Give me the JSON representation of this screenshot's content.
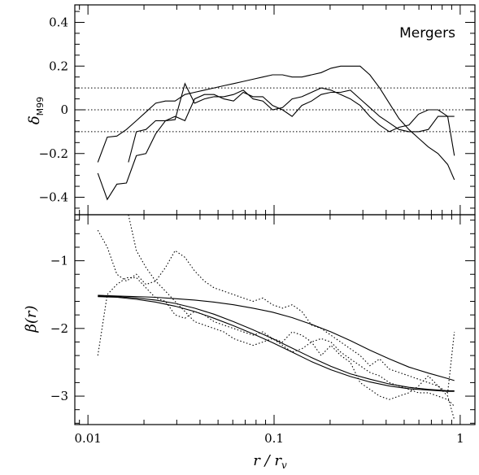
{
  "chart_data": [
    {
      "type": "line",
      "panel": "top",
      "annotation": "Mergers",
      "ylabel_main": "δ",
      "ylabel_sub": "M99",
      "xscale": "log",
      "xlim": [
        0.0085,
        1.2
      ],
      "ylim": [
        -0.48,
        0.48
      ],
      "yticks": [
        -0.4,
        -0.2,
        0,
        0.2,
        0.4
      ],
      "ytick_labels": [
        "−0.4",
        "−0.2",
        "0",
        "0.2",
        "0.4"
      ],
      "reference_lines": [
        0.1,
        0,
        -0.1
      ],
      "series": [
        {
          "style": "solid",
          "x": [
            0.0113,
            0.0127,
            0.0143,
            0.0161,
            0.0182,
            0.0205,
            0.0231,
            0.0261,
            0.0294,
            0.0332,
            0.0374,
            0.0422,
            0.0476,
            0.0537,
            0.0606,
            0.0683,
            0.0771,
            0.087,
            0.0981,
            0.111,
            0.125,
            0.141,
            0.159,
            0.179,
            0.202,
            0.228,
            0.257,
            0.29,
            0.327,
            0.369,
            0.416,
            0.469,
            0.53,
            0.597,
            0.674,
            0.76,
            0.857,
            0.93
          ],
          "y": [
            -0.24,
            -0.125,
            -0.12,
            -0.09,
            -0.05,
            -0.01,
            0.03,
            0.04,
            0.04,
            0.07,
            0.08,
            0.09,
            0.1,
            0.11,
            0.12,
            0.13,
            0.14,
            0.15,
            0.16,
            0.16,
            0.15,
            0.15,
            0.16,
            0.17,
            0.19,
            0.2,
            0.2,
            0.2,
            0.16,
            0.1,
            0.03,
            -0.04,
            -0.09,
            -0.13,
            -0.17,
            -0.2,
            -0.25,
            -0.32
          ]
        },
        {
          "style": "solid",
          "x": [
            0.0113,
            0.0127,
            0.0143,
            0.0161,
            0.0182,
            0.0205,
            0.0231,
            0.0261,
            0.0294,
            0.0332,
            0.0374,
            0.0422,
            0.0476,
            0.0537,
            0.0606,
            0.0683,
            0.0771,
            0.087,
            0.0981,
            0.111,
            0.125,
            0.141,
            0.159,
            0.179,
            0.202,
            0.228,
            0.257,
            0.29,
            0.327,
            0.369,
            0.416,
            0.469,
            0.53,
            0.597,
            0.674,
            0.76,
            0.857,
            0.93
          ],
          "y": [
            -0.29,
            -0.41,
            -0.34,
            -0.335,
            -0.21,
            -0.2,
            -0.11,
            -0.05,
            -0.03,
            -0.05,
            0.05,
            0.07,
            0.07,
            0.05,
            0.04,
            0.08,
            0.06,
            0.06,
            0.02,
            0.0,
            -0.03,
            0.02,
            0.04,
            0.07,
            0.08,
            0.08,
            0.09,
            0.05,
            0.01,
            -0.03,
            -0.06,
            -0.09,
            -0.1,
            -0.1,
            -0.09,
            -0.03,
            -0.03,
            -0.03
          ]
        },
        {
          "style": "solid",
          "x": [
            0.0165,
            0.0182,
            0.0205,
            0.0231,
            0.0261,
            0.0294,
            0.0332,
            0.0374,
            0.0422,
            0.0476,
            0.0537,
            0.0606,
            0.0683,
            0.0771,
            0.087,
            0.0981,
            0.111,
            0.125,
            0.141,
            0.159,
            0.179,
            0.202,
            0.228,
            0.257,
            0.29,
            0.327,
            0.369,
            0.416,
            0.469,
            0.53,
            0.597,
            0.674,
            0.76,
            0.857,
            0.93
          ],
          "y": [
            -0.24,
            -0.1,
            -0.09,
            -0.05,
            -0.05,
            -0.045,
            0.12,
            0.03,
            0.05,
            0.06,
            0.06,
            0.07,
            0.09,
            0.05,
            0.04,
            0.0,
            0.01,
            0.05,
            0.06,
            0.08,
            0.1,
            0.09,
            0.07,
            0.05,
            0.02,
            -0.03,
            -0.07,
            -0.1,
            -0.08,
            -0.07,
            -0.02,
            0.0,
            0.0,
            -0.03,
            -0.21
          ]
        }
      ]
    },
    {
      "type": "line",
      "panel": "bottom",
      "ylabel": "β(r)",
      "xlabel_main": "r / r",
      "xlabel_sub": "v",
      "xscale": "log",
      "xlim": [
        0.0085,
        1.2
      ],
      "ylim": [
        -3.42,
        -0.32
      ],
      "xticks": [
        0.01,
        0.1,
        1
      ],
      "xtick_labels": [
        "0.01",
        "0.1",
        "1"
      ],
      "yticks": [
        -1,
        -2,
        -3
      ],
      "ytick_labels": [
        "−1",
        "−2",
        "−3"
      ],
      "series": [
        {
          "style": "solid",
          "x": [
            0.0113,
            0.0143,
            0.0182,
            0.0231,
            0.0294,
            0.0374,
            0.0476,
            0.0606,
            0.0771,
            0.0981,
            0.125,
            0.159,
            0.202,
            0.257,
            0.327,
            0.416,
            0.53,
            0.674,
            0.857,
            0.93
          ],
          "y": [
            -1.51,
            -1.52,
            -1.53,
            -1.54,
            -1.56,
            -1.58,
            -1.61,
            -1.65,
            -1.7,
            -1.76,
            -1.84,
            -1.94,
            -2.05,
            -2.18,
            -2.32,
            -2.45,
            -2.57,
            -2.66,
            -2.74,
            -2.77
          ]
        },
        {
          "style": "solid",
          "x": [
            0.0113,
            0.0143,
            0.0182,
            0.0231,
            0.0294,
            0.0374,
            0.0476,
            0.0606,
            0.0771,
            0.0981,
            0.125,
            0.159,
            0.202,
            0.257,
            0.327,
            0.416,
            0.53,
            0.674,
            0.857,
            0.93
          ],
          "y": [
            -1.52,
            -1.53,
            -1.55,
            -1.58,
            -1.63,
            -1.7,
            -1.79,
            -1.9,
            -2.02,
            -2.15,
            -2.29,
            -2.43,
            -2.56,
            -2.67,
            -2.75,
            -2.82,
            -2.87,
            -2.9,
            -2.92,
            -2.92
          ]
        },
        {
          "style": "solid",
          "x": [
            0.0113,
            0.0143,
            0.0182,
            0.0231,
            0.0294,
            0.0374,
            0.0476,
            0.0606,
            0.0771,
            0.0981,
            0.125,
            0.159,
            0.202,
            0.257,
            0.327,
            0.416,
            0.53,
            0.674,
            0.857,
            0.93
          ],
          "y": [
            -1.53,
            -1.54,
            -1.57,
            -1.61,
            -1.67,
            -1.75,
            -1.85,
            -1.96,
            -2.08,
            -2.21,
            -2.35,
            -2.49,
            -2.61,
            -2.71,
            -2.79,
            -2.85,
            -2.89,
            -2.91,
            -2.93,
            -2.93
          ]
        },
        {
          "style": "dotted",
          "x": [
            0.0113,
            0.0127,
            0.0143,
            0.0161,
            0.0182,
            0.0205,
            0.0231,
            0.0261,
            0.0294,
            0.0332,
            0.0374,
            0.0422,
            0.0476,
            0.0537,
            0.0606,
            0.0683,
            0.0771,
            0.087,
            0.0981,
            0.111,
            0.125,
            0.141,
            0.159,
            0.179,
            0.202,
            0.228,
            0.257,
            0.29,
            0.327,
            0.369,
            0.416,
            0.469,
            0.53,
            0.597,
            0.674,
            0.76,
            0.857,
            0.93
          ],
          "y": [
            -0.55,
            -0.8,
            -1.2,
            -1.3,
            -1.2,
            -1.35,
            -1.3,
            -1.1,
            -0.85,
            -0.95,
            -1.15,
            -1.3,
            -1.4,
            -1.45,
            -1.5,
            -1.55,
            -1.6,
            -1.55,
            -1.65,
            -1.7,
            -1.65,
            -1.75,
            -1.95,
            -2.0,
            -2.1,
            -2.2,
            -2.3,
            -2.4,
            -2.55,
            -2.45,
            -2.6,
            -2.65,
            -2.7,
            -2.75,
            -2.8,
            -2.85,
            -3.0,
            -3.35
          ]
        },
        {
          "style": "dotted",
          "x": [
            0.0113,
            0.0127,
            0.0143,
            0.0161,
            0.0182,
            0.0205,
            0.0231,
            0.0261,
            0.0294,
            0.0332,
            0.0374,
            0.0422,
            0.0476,
            0.0537,
            0.0606,
            0.0683,
            0.0771,
            0.087,
            0.0981,
            0.111,
            0.125,
            0.141,
            0.159,
            0.179,
            0.202,
            0.228,
            0.257,
            0.29,
            0.327,
            0.369,
            0.416,
            0.469,
            0.53,
            0.597,
            0.674,
            0.76,
            0.857,
            0.93
          ],
          "y": [
            -2.4,
            -1.5,
            -1.35,
            -1.25,
            -1.25,
            -1.4,
            -1.55,
            -1.6,
            -1.8,
            -1.85,
            -1.75,
            -1.8,
            -1.9,
            -1.95,
            -2.0,
            -2.05,
            -2.1,
            -2.05,
            -2.15,
            -2.2,
            -2.05,
            -2.1,
            -2.2,
            -2.4,
            -2.25,
            -2.4,
            -2.5,
            -2.8,
            -2.9,
            -3.0,
            -3.05,
            -3.0,
            -2.95,
            -2.85,
            -2.7,
            -2.85,
            -2.95,
            -2.05
          ]
        },
        {
          "style": "dotted",
          "x": [
            0.0165,
            0.0182,
            0.0205,
            0.0231,
            0.0261,
            0.0294,
            0.0332,
            0.0374,
            0.0422,
            0.0476,
            0.0537,
            0.0606,
            0.0683,
            0.0771,
            0.087,
            0.0981,
            0.111,
            0.125,
            0.141,
            0.159,
            0.179,
            0.202,
            0.228,
            0.257,
            0.29,
            0.327,
            0.369,
            0.416,
            0.469,
            0.53,
            0.597,
            0.674,
            0.76,
            0.857,
            0.93
          ],
          "y": [
            -0.32,
            -0.85,
            -1.1,
            -1.3,
            -1.45,
            -1.6,
            -1.75,
            -1.9,
            -1.95,
            -2.0,
            -2.05,
            -2.15,
            -2.2,
            -2.25,
            -2.2,
            -2.15,
            -2.25,
            -2.35,
            -2.3,
            -2.2,
            -2.15,
            -2.2,
            -2.35,
            -2.45,
            -2.55,
            -2.65,
            -2.7,
            -2.8,
            -2.85,
            -2.9,
            -2.95,
            -2.95,
            -3.0,
            -3.05,
            -3.15
          ]
        }
      ]
    }
  ]
}
